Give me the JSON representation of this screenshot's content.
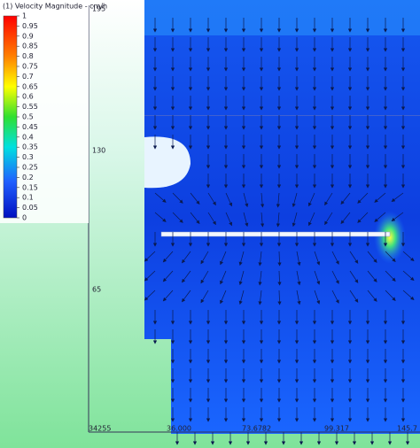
{
  "legend": {
    "title": "(1) Velocity Magnitude - cm/h",
    "ticks": [
      1,
      0.95,
      0.9,
      0.85,
      0.8,
      0.75,
      0.7,
      0.65,
      0.6,
      0.55,
      0.5,
      0.45,
      0.4,
      0.35,
      0.3,
      0.25,
      0.2,
      0.15,
      0.1,
      0.05,
      0
    ]
  },
  "vertical_axis": {
    "labels": [
      "195",
      "130",
      "65"
    ]
  },
  "horizontal_axis": {
    "labels": [
      "34255",
      "36.000",
      "73.6782",
      "99.317",
      "145.7"
    ]
  }
}
